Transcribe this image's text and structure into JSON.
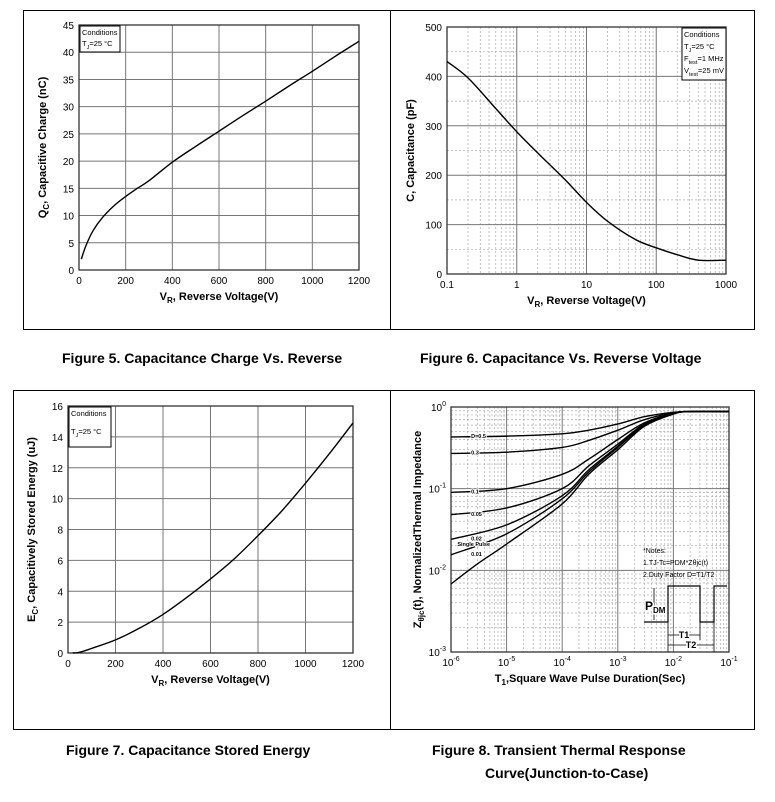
{
  "captions": {
    "fig5": "Figure 5. Capacitance Charge Vs. Reverse",
    "fig6": "Figure 6. Capacitance Vs. Reverse Voltage",
    "fig7": "Figure 7. Capacitance Stored Energy",
    "fig8_line1": "Figure 8. Transient Thermal Response",
    "fig8_line2": "Curve(Junction-to-Case)"
  },
  "chart_data": [
    {
      "id": "fig5",
      "type": "line",
      "title": "Figure 5. Capacitance Charge Vs. Reverse",
      "xlabel": [
        "V",
        "R",
        ",  Reverse Voltage(V)"
      ],
      "ylabel": [
        "Q",
        "C",
        ", Capacitive Charge (nC)"
      ],
      "xlim": [
        0,
        1200
      ],
      "ylim": [
        0,
        45
      ],
      "x_ticks": [
        0,
        200,
        400,
        600,
        800,
        1000,
        1200
      ],
      "x_tick_labels": [
        "0",
        "200",
        "400",
        "600",
        "800",
        "1000",
        "1200"
      ],
      "y_ticks": [
        0,
        5,
        10,
        15,
        20,
        25,
        30,
        35,
        40,
        45
      ],
      "y_tick_labels": [
        "0",
        "5",
        "10",
        "15",
        "20",
        "25",
        "30",
        "35",
        "40",
        "45"
      ],
      "grid": true,
      "conditions": [
        [
          "Conditions",
          "",
          ""
        ],
        [
          "T",
          "J",
          "=25 °C"
        ]
      ],
      "series": [
        {
          "name": "Qc",
          "x": [
            10,
            30,
            60,
            100,
            150,
            200,
            250,
            300,
            400,
            500,
            600,
            700,
            800,
            900,
            1000,
            1100,
            1200
          ],
          "y": [
            2,
            4.5,
            7.2,
            9.6,
            11.8,
            13.5,
            15,
            16.4,
            19.8,
            22.7,
            25.5,
            28.3,
            31,
            33.8,
            36.5,
            39.3,
            42
          ]
        }
      ]
    },
    {
      "id": "fig6",
      "type": "line",
      "title": "Figure 6. Capacitance Vs. Reverse Voltage",
      "xlabel": [
        "V",
        "R",
        ", Reverse Voltage(V)"
      ],
      "ylabel": [
        "C, Capacitance (pF)",
        "",
        ""
      ],
      "xlim": [
        0.1,
        1000
      ],
      "xscale": "log",
      "ylim": [
        0,
        500
      ],
      "x_ticks": [
        0.1,
        1,
        10,
        100,
        1000
      ],
      "x_tick_labels": [
        "0.1",
        "1",
        "10",
        "100",
        "1000"
      ],
      "y_ticks": [
        0,
        100,
        200,
        300,
        400,
        500
      ],
      "y_tick_labels": [
        "0",
        "100",
        "200",
        "300",
        "400",
        "500"
      ],
      "grid": true,
      "conditions": [
        [
          "Conditions",
          "",
          ""
        ],
        [
          "T",
          "J",
          "=25 °C"
        ],
        [
          "F",
          "test",
          "=1 MHz"
        ],
        [
          "V",
          "test",
          "=25 mV"
        ]
      ],
      "series": [
        {
          "name": "C",
          "x": [
            0.1,
            0.2,
            0.5,
            1,
            2,
            5,
            10,
            20,
            50,
            100,
            200,
            400,
            1000
          ],
          "y": [
            430,
            397,
            335,
            288,
            245,
            190,
            145,
            107,
            70,
            53,
            39,
            28,
            28
          ]
        }
      ]
    },
    {
      "id": "fig7",
      "type": "line",
      "title": "Figure 7. Capacitance Stored Energy",
      "xlabel": [
        "V",
        "R",
        ",  Reverse Voltage(V)"
      ],
      "ylabel": [
        "E",
        "C",
        ", Capacitively Stored Energy (uJ)"
      ],
      "xlim": [
        0,
        1200
      ],
      "ylim": [
        0,
        16
      ],
      "x_ticks": [
        0,
        200,
        400,
        600,
        800,
        1000,
        1200
      ],
      "x_tick_labels": [
        "0",
        "200",
        "400",
        "600",
        "800",
        "1000",
        "1200"
      ],
      "y_ticks": [
        0,
        2,
        4,
        6,
        8,
        10,
        12,
        14,
        16
      ],
      "y_tick_labels": [
        "0",
        "2",
        "4",
        "6",
        "8",
        "10",
        "12",
        "14",
        "16"
      ],
      "grid": true,
      "conditions": [
        [
          "Conditions",
          "",
          ""
        ],
        [
          "T",
          "J",
          "=25 °C"
        ]
      ],
      "series": [
        {
          "name": "Ec",
          "x": [
            20,
            50,
            100,
            200,
            300,
            400,
            500,
            600,
            700,
            800,
            900,
            1000,
            1100,
            1200
          ],
          "y": [
            0,
            0.05,
            0.3,
            0.85,
            1.6,
            2.5,
            3.6,
            4.8,
            6.1,
            7.6,
            9.2,
            11,
            12.9,
            14.9
          ]
        }
      ]
    },
    {
      "id": "fig8",
      "type": "line",
      "title": "Figure 8. Transient Thermal Response Curve(Junction-to-Case)",
      "xlabel": [
        "T",
        "1",
        ",Square Wave Pulse Duration(Sec)"
      ],
      "ylabel": [
        "Z",
        "θjc",
        "(t), NormalizedThermal Impedance"
      ],
      "xlim": [
        1e-06,
        0.1
      ],
      "xscale": "log",
      "ylim": [
        0.001,
        1
      ],
      "yscale": "log",
      "x_ticks": [
        1e-06,
        1e-05,
        0.0001,
        0.001,
        0.01,
        0.1
      ],
      "x_tick_labels": [
        "10^-6",
        "10^-5",
        "10^-4",
        "10^-3",
        "10^-2",
        "10^-1"
      ],
      "y_ticks": [
        0.001,
        0.01,
        0.1,
        1
      ],
      "y_tick_labels": [
        "10^-3",
        "10^-2",
        "10^-1",
        "10^0"
      ],
      "grid": true,
      "notes": [
        "*Notes:",
        "1.TJ-Tc=PDM*Zθjc(t)",
        "2.Duty Factor D=T1/T2"
      ],
      "pulse_labels": {
        "pdm": [
          "P",
          "DM"
        ],
        "t1": "T1",
        "t2": "T2"
      },
      "series": [
        {
          "name": "D=0.5",
          "x": [
            1e-06,
            1e-05,
            0.0001,
            0.0003,
            0.001,
            0.003,
            0.01,
            0.02,
            0.1
          ],
          "y": [
            0.43,
            0.44,
            0.47,
            0.52,
            0.62,
            0.76,
            0.86,
            0.88,
            0.88
          ]
        },
        {
          "name": "0.3",
          "x": [
            1e-06,
            1e-05,
            0.0001,
            0.0003,
            0.001,
            0.003,
            0.01,
            0.02,
            0.1
          ],
          "y": [
            0.27,
            0.28,
            0.32,
            0.39,
            0.52,
            0.7,
            0.85,
            0.88,
            0.88
          ]
        },
        {
          "name": "0.1",
          "x": [
            1e-06,
            1e-05,
            0.0001,
            0.0003,
            0.001,
            0.003,
            0.01,
            0.02,
            0.1
          ],
          "y": [
            0.09,
            0.1,
            0.15,
            0.23,
            0.4,
            0.64,
            0.84,
            0.88,
            0.88
          ]
        },
        {
          "name": "0.05",
          "x": [
            1e-06,
            1e-05,
            0.0001,
            0.0003,
            0.001,
            0.003,
            0.01,
            0.02,
            0.1
          ],
          "y": [
            0.048,
            0.058,
            0.1,
            0.19,
            0.35,
            0.62,
            0.84,
            0.88,
            0.88
          ]
        },
        {
          "name": "0.02",
          "x": [
            1e-06,
            1e-05,
            0.0001,
            0.0003,
            0.001,
            0.003,
            0.01,
            0.02,
            0.1
          ],
          "y": [
            0.024,
            0.036,
            0.082,
            0.17,
            0.33,
            0.61,
            0.83,
            0.88,
            0.88
          ]
        },
        {
          "name": "0.01",
          "x": [
            1e-06,
            1e-05,
            0.0001,
            0.0003,
            0.001,
            0.003,
            0.01,
            0.02,
            0.1
          ],
          "y": [
            0.0155,
            0.028,
            0.075,
            0.16,
            0.32,
            0.6,
            0.83,
            0.88,
            0.88
          ]
        },
        {
          "name": "Single Pulse",
          "x": [
            1e-06,
            3e-06,
            1e-05,
            0.0001,
            0.0003,
            0.001,
            0.003,
            0.01,
            0.02,
            0.1
          ],
          "y": [
            0.0068,
            0.012,
            0.021,
            0.065,
            0.15,
            0.3,
            0.58,
            0.82,
            0.88,
            0.88
          ]
        }
      ]
    }
  ]
}
